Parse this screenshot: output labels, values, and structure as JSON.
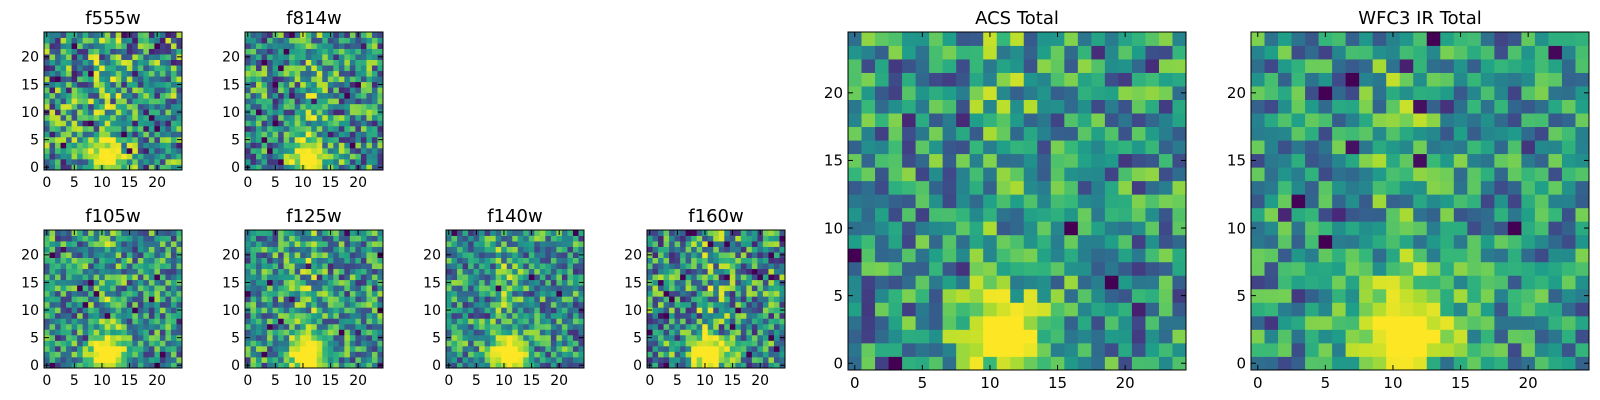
{
  "figure": {
    "description_colormap": "viridis"
  },
  "chart_data": [
    {
      "type": "heatmap",
      "title": "f555w",
      "xticks": [
        "0",
        "5",
        "10",
        "15",
        "20"
      ],
      "yticks": [
        "0",
        "5",
        "10",
        "15",
        "20"
      ],
      "xlim": [
        0,
        24
      ],
      "ylim": [
        0,
        24
      ],
      "grid_size": 25,
      "source_center": [
        11,
        2
      ],
      "source_radius": 2.2,
      "noise_level": 0.55,
      "seed": 11
    },
    {
      "type": "heatmap",
      "title": "f814w",
      "xticks": [
        "0",
        "5",
        "10",
        "15",
        "20"
      ],
      "yticks": [
        "0",
        "5",
        "10",
        "15",
        "20"
      ],
      "xlim": [
        0,
        24
      ],
      "ylim": [
        0,
        24
      ],
      "grid_size": 25,
      "source_center": [
        11,
        2
      ],
      "source_radius": 2.3,
      "noise_level": 0.5,
      "seed": 23
    },
    {
      "type": "heatmap",
      "title": "f105w",
      "xticks": [
        "0",
        "5",
        "10",
        "15",
        "20"
      ],
      "yticks": [
        "0",
        "5",
        "10",
        "15",
        "20"
      ],
      "xlim": [
        0,
        24
      ],
      "ylim": [
        0,
        24
      ],
      "grid_size": 25,
      "source_center": [
        11,
        2
      ],
      "source_radius": 2.6,
      "noise_level": 0.45,
      "seed": 37
    },
    {
      "type": "heatmap",
      "title": "f125w",
      "xticks": [
        "0",
        "5",
        "10",
        "15",
        "20"
      ],
      "yticks": [
        "0",
        "5",
        "10",
        "15",
        "20"
      ],
      "xlim": [
        0,
        24
      ],
      "ylim": [
        0,
        24
      ],
      "grid_size": 25,
      "source_center": [
        11,
        2
      ],
      "source_radius": 2.6,
      "noise_level": 0.45,
      "seed": 41
    },
    {
      "type": "heatmap",
      "title": "f140w",
      "xticks": [
        "0",
        "5",
        "10",
        "15",
        "20"
      ],
      "yticks": [
        "0",
        "5",
        "10",
        "15",
        "20"
      ],
      "xlim": [
        0,
        24
      ],
      "ylim": [
        0,
        24
      ],
      "grid_size": 25,
      "source_center": [
        11,
        2
      ],
      "source_radius": 2.6,
      "noise_level": 0.45,
      "seed": 53
    },
    {
      "type": "heatmap",
      "title": "f160w",
      "xticks": [
        "0",
        "5",
        "10",
        "15",
        "20"
      ],
      "yticks": [
        "0",
        "5",
        "10",
        "15",
        "20"
      ],
      "xlim": [
        0,
        24
      ],
      "ylim": [
        0,
        24
      ],
      "grid_size": 25,
      "source_center": [
        11,
        2
      ],
      "source_radius": 2.5,
      "noise_level": 0.5,
      "seed": 67
    },
    {
      "type": "heatmap",
      "title": "ACS Total",
      "xticks": [
        "0",
        "5",
        "10",
        "15",
        "20"
      ],
      "yticks": [
        "0",
        "5",
        "10",
        "15",
        "20"
      ],
      "xlim": [
        0,
        24
      ],
      "ylim": [
        0,
        24
      ],
      "grid_size": 25,
      "source_center": [
        11,
        2
      ],
      "source_radius": 2.4,
      "noise_level": 0.42,
      "seed": 79
    },
    {
      "type": "heatmap",
      "title": "WFC3 IR Total",
      "xticks": [
        "0",
        "5",
        "10",
        "15",
        "20"
      ],
      "yticks": [
        "0",
        "5",
        "10",
        "15",
        "20"
      ],
      "xlim": [
        0,
        24
      ],
      "ylim": [
        0,
        24
      ],
      "grid_size": 25,
      "source_center": [
        11,
        2
      ],
      "source_radius": 2.8,
      "noise_level": 0.38,
      "seed": 97
    }
  ]
}
